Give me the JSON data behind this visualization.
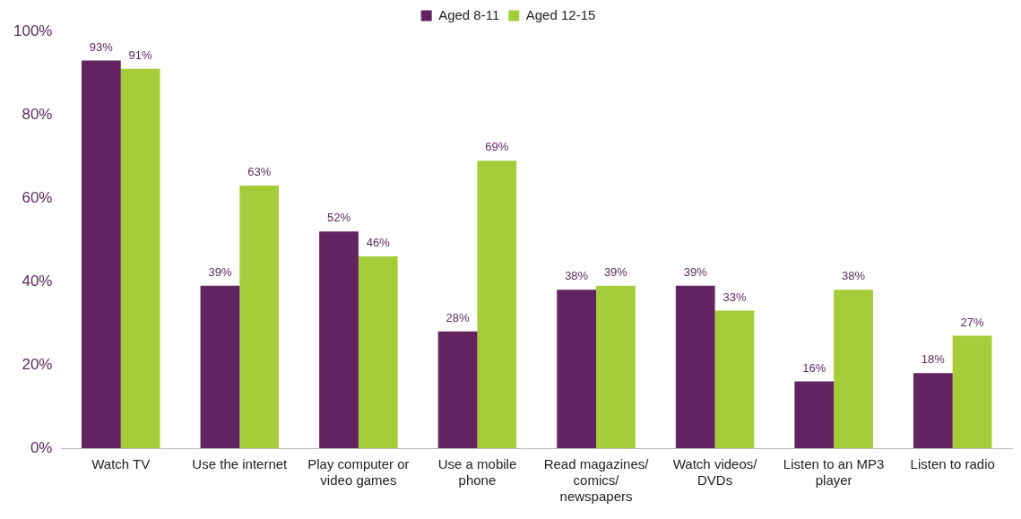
{
  "chart_data": {
    "type": "bar",
    "categories": [
      "Watch TV",
      "Use the internet",
      "Play computer or video games",
      "Use a mobile phone",
      "Read magazines/ comics/ newspapers",
      "Watch videos/ DVDs",
      "Listen to an MP3 player",
      "Listen to radio"
    ],
    "series": [
      {
        "name": "Aged 8-11",
        "color": "#622461",
        "values": [
          93,
          39,
          52,
          28,
          38,
          39,
          16,
          18
        ]
      },
      {
        "name": "Aged 12-15",
        "color": "#a5cd39",
        "values": [
          91,
          63,
          46,
          69,
          39,
          33,
          38,
          27
        ]
      }
    ],
    "value_labels": [
      [
        "93%",
        "39%",
        "52%",
        "28%",
        "38%",
        "39%",
        "16%",
        "18%"
      ],
      [
        "91%",
        "63%",
        "46%",
        "69%",
        "39%",
        "33%",
        "38%",
        "27%"
      ]
    ],
    "ylim": [
      0,
      100
    ],
    "yticks": [
      {
        "value": 0,
        "label": "0%"
      },
      {
        "value": 20,
        "label": "20%"
      },
      {
        "value": 40,
        "label": "40%"
      },
      {
        "value": 60,
        "label": "60%"
      },
      {
        "value": 80,
        "label": "80%"
      },
      {
        "value": 100,
        "label": "100%"
      }
    ],
    "grid": false,
    "legend": "top"
  }
}
